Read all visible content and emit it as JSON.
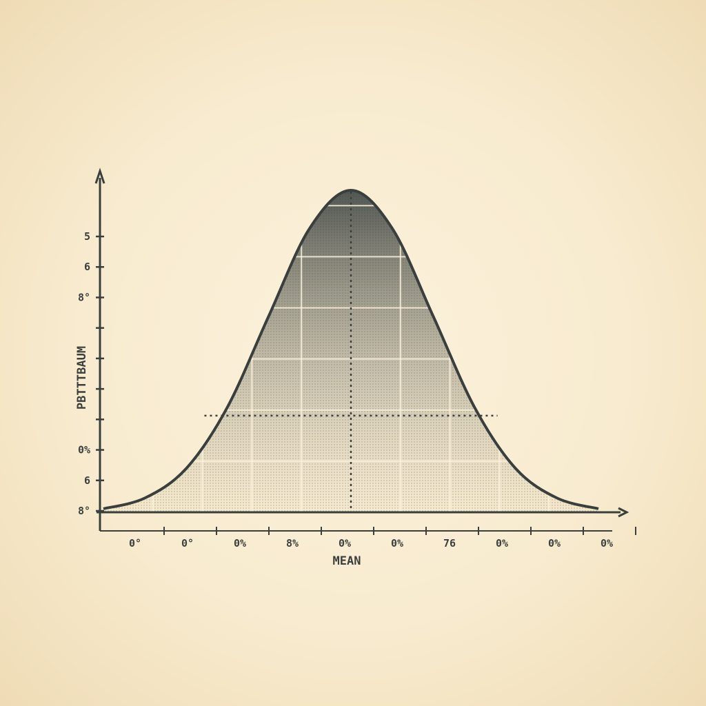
{
  "chart_data": {
    "type": "area",
    "title": "",
    "xlabel": "MEAN",
    "ylabel": "PBTTTBAUM",
    "x_tick_labels": [
      "0°",
      "0°",
      "0%",
      "8%",
      "0%",
      "0%",
      "76",
      "0%",
      "0%",
      "0%"
    ],
    "y_tick_labels": [
      "5",
      "6",
      "8°",
      "",
      "",
      "",
      "",
      "0%",
      "6",
      "8°"
    ],
    "x": [
      -3.0,
      -2.5,
      -2.0,
      -1.5,
      -1.0,
      -0.5,
      0.0,
      0.5,
      1.0,
      1.5,
      2.0,
      2.5,
      3.0
    ],
    "values": [
      0.011,
      0.044,
      0.135,
      0.325,
      0.607,
      0.882,
      1.0,
      0.882,
      0.607,
      0.325,
      0.135,
      0.044,
      0.011
    ],
    "xlim": [
      -3.0,
      3.0
    ],
    "ylim": [
      0,
      1.0
    ],
    "mean": 0.0,
    "reference_level": 0.3,
    "grid": true,
    "legend": "none",
    "colors": {
      "curve": "#3a3f3d",
      "fill_top": "#4a4f4c",
      "fill_bottom": "#efe2c4",
      "axis": "#3a3f3d",
      "grid": "#fbf1dc",
      "guide": "#3a3f3d"
    }
  }
}
